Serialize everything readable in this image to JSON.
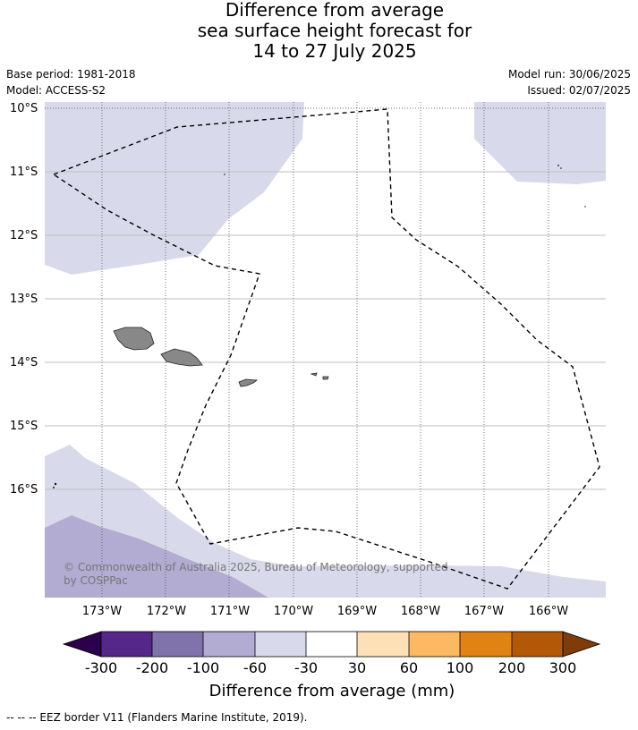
{
  "title": {
    "line1": "Difference from average",
    "line2": "sea surface height forecast for",
    "line3": "14 to 27 July 2025"
  },
  "meta_left": {
    "base_period": "Base period: 1981-2018",
    "model": "Model: ACCESS-S2"
  },
  "meta_right": {
    "model_run": "Model run: 30/06/2025",
    "issued": "Issued: 02/07/2025"
  },
  "map": {
    "lat_labels": [
      "10°S",
      "11°S",
      "12°S",
      "13°S",
      "14°S",
      "15°S",
      "16°S"
    ],
    "lon_labels": [
      "173°W",
      "172°W",
      "171°W",
      "170°W",
      "169°W",
      "168°W",
      "167°W",
      "166°W"
    ],
    "copyright_line1": "© Commonwealth of Australia 2025, Bureau of Meteorology, supported",
    "copyright_line2": "by COSPPac",
    "land_color": "#888888",
    "eez_line_style": "black dashed",
    "colorbar_label": "Difference from average (mm)",
    "colorbar_ticks": [
      "-300",
      "-200",
      "-100",
      "-60",
      "-30",
      "30",
      "60",
      "100",
      "200",
      "300"
    ],
    "colorbar_colors": [
      "#2d004b",
      "#542788",
      "#8073ac",
      "#b2abd2",
      "#d8daeb",
      "#ffffff",
      "#fee0b6",
      "#fdb863",
      "#e08214",
      "#b35806",
      "#7f3b08"
    ]
  },
  "footnote": "--  --  -- EEZ border V11 (Flanders Marine Institute, 2019)."
}
